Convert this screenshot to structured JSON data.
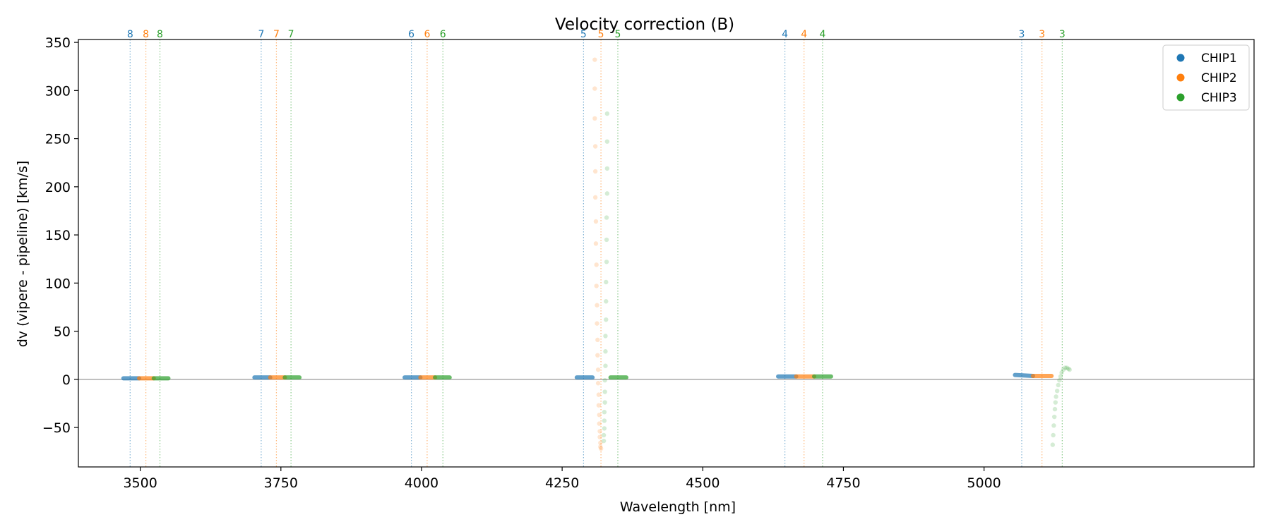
{
  "chart_data": {
    "type": "scatter",
    "title": "Velocity correction (B)",
    "xlabel": "Wavelength [nm]",
    "ylabel": "dv (vipere - pipeline) [km/s]",
    "xlim": [
      3390,
      5480
    ],
    "ylim": [
      -91,
      353
    ],
    "xticks": [
      3500,
      3750,
      4000,
      4250,
      4500,
      4750,
      5000
    ],
    "yticks": [
      -50,
      0,
      50,
      100,
      150,
      200,
      250,
      300,
      350
    ],
    "grid": false,
    "zero_line": true,
    "legend_position": "top-right",
    "legend": [
      "CHIP1",
      "CHIP2",
      "CHIP3"
    ],
    "colors": {
      "CHIP1": "#1f77b4",
      "CHIP2": "#ff7f0e",
      "CHIP3": "#2ca02c"
    },
    "order_markers": [
      {
        "order": "8",
        "chip": "CHIP1",
        "wavelength": 3482
      },
      {
        "order": "8",
        "chip": "CHIP2",
        "wavelength": 3510
      },
      {
        "order": "8",
        "chip": "CHIP3",
        "wavelength": 3535
      },
      {
        "order": "7",
        "chip": "CHIP1",
        "wavelength": 3715
      },
      {
        "order": "7",
        "chip": "CHIP2",
        "wavelength": 3742
      },
      {
        "order": "7",
        "chip": "CHIP3",
        "wavelength": 3768
      },
      {
        "order": "6",
        "chip": "CHIP1",
        "wavelength": 3982
      },
      {
        "order": "6",
        "chip": "CHIP2",
        "wavelength": 4010
      },
      {
        "order": "6",
        "chip": "CHIP3",
        "wavelength": 4038
      },
      {
        "order": "5",
        "chip": "CHIP1",
        "wavelength": 4288
      },
      {
        "order": "5",
        "chip": "CHIP2",
        "wavelength": 4319
      },
      {
        "order": "5",
        "chip": "CHIP3",
        "wavelength": 4349
      },
      {
        "order": "4",
        "chip": "CHIP1",
        "wavelength": 4646
      },
      {
        "order": "4",
        "chip": "CHIP2",
        "wavelength": 4680
      },
      {
        "order": "4",
        "chip": "CHIP3",
        "wavelength": 4713
      },
      {
        "order": "3",
        "chip": "CHIP1",
        "wavelength": 5067
      },
      {
        "order": "3",
        "chip": "CHIP2",
        "wavelength": 5103
      },
      {
        "order": "3",
        "chip": "CHIP3",
        "wavelength": 5139
      }
    ],
    "series": [
      {
        "name": "CHIP1",
        "segments": [
          {
            "x": [
              3470,
              3498
            ],
            "y": [
              1,
              1
            ]
          },
          {
            "x": [
              3703,
              3731
            ],
            "y": [
              2,
              2
            ]
          },
          {
            "x": [
              3970,
              3998
            ],
            "y": [
              2,
              2
            ]
          },
          {
            "x": [
              4276,
              4304
            ],
            "y": [
              2,
              2
            ]
          },
          {
            "x": [
              4634,
              4666
            ],
            "y": [
              3,
              3
            ]
          },
          {
            "x": [
              5055,
              5087
            ],
            "y": [
              4.5,
              3.5
            ]
          }
        ],
        "points": []
      },
      {
        "name": "CHIP2",
        "segments": [
          {
            "x": [
              3498,
              3524
            ],
            "y": [
              1,
              1
            ]
          },
          {
            "x": [
              3731,
              3757
            ],
            "y": [
              2,
              2
            ]
          },
          {
            "x": [
              3998,
              4024
            ],
            "y": [
              2,
              2
            ]
          },
          {
            "x": [
              4666,
              4698
            ],
            "y": [
              3,
              3
            ]
          },
          {
            "x": [
              5087,
              5120
            ],
            "y": [
              3.5,
              3.5
            ]
          }
        ],
        "points": [
          {
            "x": 4308,
            "y": 332
          },
          {
            "x": 4308,
            "y": 302
          },
          {
            "x": 4308,
            "y": 271
          },
          {
            "x": 4309,
            "y": 242
          },
          {
            "x": 4309,
            "y": 216
          },
          {
            "x": 4309,
            "y": 189
          },
          {
            "x": 4310,
            "y": 164
          },
          {
            "x": 4310,
            "y": 141
          },
          {
            "x": 4311,
            "y": 119
          },
          {
            "x": 4311,
            "y": 97
          },
          {
            "x": 4312,
            "y": 77
          },
          {
            "x": 4312,
            "y": 58
          },
          {
            "x": 4313,
            "y": 41
          },
          {
            "x": 4313,
            "y": 25
          },
          {
            "x": 4314,
            "y": 10
          },
          {
            "x": 4314,
            "y": -4
          },
          {
            "x": 4315,
            "y": -16
          },
          {
            "x": 4315,
            "y": -27
          },
          {
            "x": 4316,
            "y": -37
          },
          {
            "x": 4316,
            "y": -46
          },
          {
            "x": 4317,
            "y": -54
          },
          {
            "x": 4317,
            "y": -60
          },
          {
            "x": 4318,
            "y": -66
          },
          {
            "x": 4318,
            "y": -70
          },
          {
            "x": 4319,
            "y": -72
          }
        ]
      },
      {
        "name": "CHIP3",
        "segments": [
          {
            "x": [
              3524,
              3550
            ],
            "y": [
              1,
              1
            ]
          },
          {
            "x": [
              3757,
              3783
            ],
            "y": [
              2,
              2
            ]
          },
          {
            "x": [
              4024,
              4050
            ],
            "y": [
              2,
              2
            ]
          },
          {
            "x": [
              4336,
              4364
            ],
            "y": [
              2,
              2
            ]
          },
          {
            "x": [
              4698,
              4728
            ],
            "y": [
              3,
              3
            ]
          }
        ],
        "points": [
          {
            "x": 4330,
            "y": 276
          },
          {
            "x": 4330,
            "y": 247
          },
          {
            "x": 4330,
            "y": 219
          },
          {
            "x": 4330,
            "y": 193
          },
          {
            "x": 4329,
            "y": 168
          },
          {
            "x": 4329,
            "y": 145
          },
          {
            "x": 4329,
            "y": 122
          },
          {
            "x": 4328,
            "y": 101
          },
          {
            "x": 4328,
            "y": 81
          },
          {
            "x": 4328,
            "y": 62
          },
          {
            "x": 4327,
            "y": 45
          },
          {
            "x": 4327,
            "y": 29
          },
          {
            "x": 4327,
            "y": 14
          },
          {
            "x": 4326,
            "y": -1
          },
          {
            "x": 4326,
            "y": -13
          },
          {
            "x": 4326,
            "y": -24
          },
          {
            "x": 4325,
            "y": -34
          },
          {
            "x": 4325,
            "y": -43
          },
          {
            "x": 4325,
            "y": -51
          },
          {
            "x": 4324,
            "y": -58
          },
          {
            "x": 4324,
            "y": -64
          },
          {
            "x": 5122,
            "y": -68
          },
          {
            "x": 5123,
            "y": -58
          },
          {
            "x": 5124,
            "y": -48
          },
          {
            "x": 5125,
            "y": -39
          },
          {
            "x": 5126,
            "y": -31
          },
          {
            "x": 5127,
            "y": -24
          },
          {
            "x": 5128,
            "y": -18
          },
          {
            "x": 5130,
            "y": -12
          },
          {
            "x": 5132,
            "y": -6
          },
          {
            "x": 5134,
            "y": -1
          },
          {
            "x": 5136,
            "y": 3
          },
          {
            "x": 5138,
            "y": 7
          },
          {
            "x": 5141,
            "y": 10
          },
          {
            "x": 5144,
            "y": 12
          },
          {
            "x": 5147,
            "y": 12
          },
          {
            "x": 5150,
            "y": 11
          },
          {
            "x": 5152,
            "y": 10
          }
        ]
      }
    ]
  }
}
